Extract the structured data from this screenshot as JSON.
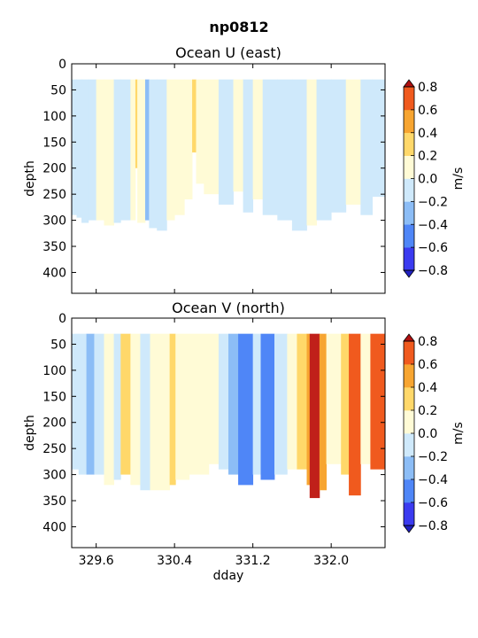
{
  "figure": {
    "suptitle": "np0812",
    "xlabel": "dday"
  },
  "colors": {
    "levels": [
      -0.8,
      -0.6,
      -0.4,
      -0.2,
      0.0,
      0.2,
      0.4,
      0.6,
      0.8
    ],
    "fills": [
      "#3b3bf0",
      "#4f86f7",
      "#8cbdf6",
      "#cfe9fb",
      "#fffbd6",
      "#ffd86a",
      "#f7a531",
      "#f05a1e"
    ],
    "deep": "#c0201a",
    "under": "#2020c0",
    "over": "#b01010",
    "frame": "#000000"
  },
  "chart_data": [
    {
      "type": "heatmap",
      "title": "Ocean U (east)",
      "ylabel": "depth",
      "xlabel": "",
      "xlim": [
        329.35,
        332.55
      ],
      "ylim": [
        440,
        0
      ],
      "xticks": [
        329.6,
        330.4,
        331.2,
        332.0
      ],
      "xticklabels": [
        "329.6",
        "330.4",
        "331.2",
        "332.0"
      ],
      "yticks": [
        0,
        50,
        100,
        150,
        200,
        250,
        300,
        350,
        400
      ],
      "data_top_depth": 30,
      "colorbar": {
        "label": "m/s",
        "ticks": [
          "0.8",
          "0.6",
          "0.4",
          "0.2",
          "0.0",
          "−0.2",
          "−0.4",
          "−0.6",
          "−0.8"
        ]
      },
      "columns": [
        {
          "x0": 329.35,
          "x1": 329.4,
          "value": -0.05,
          "bottom": 290
        },
        {
          "x0": 329.4,
          "x1": 329.45,
          "value": -0.1,
          "bottom": 295
        },
        {
          "x0": 329.45,
          "x1": 329.52,
          "value": -0.1,
          "bottom": 305
        },
        {
          "x0": 329.52,
          "x1": 329.6,
          "value": -0.05,
          "bottom": 300
        },
        {
          "x0": 329.6,
          "x1": 329.68,
          "value": 0.05,
          "bottom": 300
        },
        {
          "x0": 329.68,
          "x1": 329.78,
          "value": 0.05,
          "bottom": 310
        },
        {
          "x0": 329.78,
          "x1": 329.85,
          "value": -0.05,
          "bottom": 305
        },
        {
          "x0": 329.85,
          "x1": 329.95,
          "value": -0.05,
          "bottom": 300
        },
        {
          "x0": 329.95,
          "x1": 330.0,
          "value": 0.05,
          "bottom": 300
        },
        {
          "x0": 330.0,
          "x1": 330.02,
          "value": 0.3,
          "bottom": 200
        },
        {
          "x0": 330.02,
          "x1": 330.1,
          "value": 0.05,
          "bottom": 305
        },
        {
          "x0": 330.1,
          "x1": 330.14,
          "value": -0.25,
          "bottom": 300
        },
        {
          "x0": 330.14,
          "x1": 330.22,
          "value": -0.1,
          "bottom": 315
        },
        {
          "x0": 330.22,
          "x1": 330.32,
          "value": -0.05,
          "bottom": 320
        },
        {
          "x0": 330.32,
          "x1": 330.4,
          "value": 0.05,
          "bottom": 300
        },
        {
          "x0": 330.4,
          "x1": 330.5,
          "value": 0.05,
          "bottom": 290
        },
        {
          "x0": 330.5,
          "x1": 330.58,
          "value": 0.05,
          "bottom": 260
        },
        {
          "x0": 330.58,
          "x1": 330.62,
          "value": 0.25,
          "bottom": 170
        },
        {
          "x0": 330.62,
          "x1": 330.7,
          "value": 0.05,
          "bottom": 230
        },
        {
          "x0": 330.7,
          "x1": 330.85,
          "value": 0.05,
          "bottom": 250
        },
        {
          "x0": 330.85,
          "x1": 331.0,
          "value": -0.05,
          "bottom": 270
        },
        {
          "x0": 331.0,
          "x1": 331.1,
          "value": 0.05,
          "bottom": 245
        },
        {
          "x0": 331.1,
          "x1": 331.2,
          "value": -0.05,
          "bottom": 285
        },
        {
          "x0": 331.2,
          "x1": 331.3,
          "value": 0.05,
          "bottom": 260
        },
        {
          "x0": 331.3,
          "x1": 331.45,
          "value": -0.05,
          "bottom": 290
        },
        {
          "x0": 331.45,
          "x1": 331.6,
          "value": -0.05,
          "bottom": 300
        },
        {
          "x0": 331.6,
          "x1": 331.75,
          "value": -0.1,
          "bottom": 320
        },
        {
          "x0": 331.75,
          "x1": 331.85,
          "value": 0.05,
          "bottom": 310
        },
        {
          "x0": 331.85,
          "x1": 332.0,
          "value": -0.05,
          "bottom": 300
        },
        {
          "x0": 332.0,
          "x1": 332.15,
          "value": -0.05,
          "bottom": 285
        },
        {
          "x0": 332.15,
          "x1": 332.3,
          "value": 0.05,
          "bottom": 270
        },
        {
          "x0": 332.3,
          "x1": 332.42,
          "value": -0.05,
          "bottom": 290
        },
        {
          "x0": 332.42,
          "x1": 332.55,
          "value": -0.1,
          "bottom": 255
        }
      ]
    },
    {
      "type": "heatmap",
      "title": "Ocean V (north)",
      "ylabel": "depth",
      "xlabel": "dday",
      "xlim": [
        329.35,
        332.55
      ],
      "ylim": [
        440,
        0
      ],
      "xticks": [
        329.6,
        330.4,
        331.2,
        332.0
      ],
      "xticklabels": [
        "329.6",
        "330.4",
        "331.2",
        "332.0"
      ],
      "yticks": [
        0,
        50,
        100,
        150,
        200,
        250,
        300,
        350,
        400
      ],
      "data_top_depth": 30,
      "colorbar": {
        "label": "m/s",
        "ticks": [
          "0.8",
          "0.6",
          "0.4",
          "0.2",
          "0.0",
          "−0.2",
          "−0.4",
          "−0.6",
          "−0.8"
        ]
      },
      "columns": [
        {
          "x0": 329.35,
          "x1": 329.42,
          "value": -0.05,
          "bottom": 290
        },
        {
          "x0": 329.42,
          "x1": 329.5,
          "value": -0.1,
          "bottom": 300
        },
        {
          "x0": 329.5,
          "x1": 329.58,
          "value": -0.25,
          "bottom": 300
        },
        {
          "x0": 329.58,
          "x1": 329.68,
          "value": -0.05,
          "bottom": 300
        },
        {
          "x0": 329.68,
          "x1": 329.78,
          "value": 0.05,
          "bottom": 320
        },
        {
          "x0": 329.78,
          "x1": 329.85,
          "value": -0.1,
          "bottom": 310
        },
        {
          "x0": 329.85,
          "x1": 329.95,
          "value": 0.3,
          "bottom": 300
        },
        {
          "x0": 329.95,
          "x1": 330.05,
          "value": 0.05,
          "bottom": 320
        },
        {
          "x0": 330.05,
          "x1": 330.15,
          "value": -0.05,
          "bottom": 330
        },
        {
          "x0": 330.15,
          "x1": 330.35,
          "value": 0.05,
          "bottom": 330
        },
        {
          "x0": 330.35,
          "x1": 330.41,
          "value": 0.3,
          "bottom": 320
        },
        {
          "x0": 330.41,
          "x1": 330.55,
          "value": 0.05,
          "bottom": 310
        },
        {
          "x0": 330.55,
          "x1": 330.75,
          "value": 0.05,
          "bottom": 300
        },
        {
          "x0": 330.75,
          "x1": 330.85,
          "value": 0.05,
          "bottom": 280
        },
        {
          "x0": 330.85,
          "x1": 330.95,
          "value": -0.05,
          "bottom": 290
        },
        {
          "x0": 330.95,
          "x1": 331.05,
          "value": -0.3,
          "bottom": 300
        },
        {
          "x0": 331.05,
          "x1": 331.2,
          "value": -0.5,
          "bottom": 320
        },
        {
          "x0": 331.2,
          "x1": 331.28,
          "value": -0.1,
          "bottom": 300
        },
        {
          "x0": 331.28,
          "x1": 331.42,
          "value": -0.5,
          "bottom": 310
        },
        {
          "x0": 331.42,
          "x1": 331.55,
          "value": -0.05,
          "bottom": 300
        },
        {
          "x0": 331.55,
          "x1": 331.65,
          "value": 0.05,
          "bottom": 290
        },
        {
          "x0": 331.65,
          "x1": 331.75,
          "value": 0.3,
          "bottom": 290
        },
        {
          "x0": 331.75,
          "x1": 331.78,
          "value": 0.5,
          "bottom": 320
        },
        {
          "x0": 331.78,
          "x1": 331.88,
          "value": 0.9,
          "bottom": 345
        },
        {
          "x0": 331.88,
          "x1": 331.95,
          "value": 0.5,
          "bottom": 330
        },
        {
          "x0": 331.95,
          "x1": 332.1,
          "value": 0.05,
          "bottom": 280
        },
        {
          "x0": 332.1,
          "x1": 332.18,
          "value": 0.3,
          "bottom": 300
        },
        {
          "x0": 332.18,
          "x1": 332.3,
          "value": 0.7,
          "bottom": 340
        },
        {
          "x0": 332.3,
          "x1": 332.4,
          "value": 0.05,
          "bottom": 280
        },
        {
          "x0": 332.4,
          "x1": 332.55,
          "value": 0.7,
          "bottom": 290
        }
      ]
    }
  ]
}
